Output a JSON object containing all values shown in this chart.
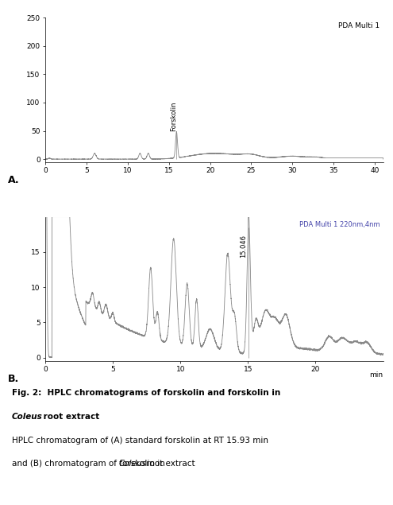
{
  "panel_a": {
    "label": "A.",
    "annotation": "PDA Multi 1",
    "peak_label": "Forskolin",
    "peak_x": 15.93,
    "peak_y": 46,
    "xlim": [
      0,
      41
    ],
    "ylim": [
      -5,
      250
    ],
    "yticks": [
      0,
      50,
      100,
      150,
      200,
      250
    ],
    "xticks": [
      0,
      5,
      10,
      15,
      20,
      25,
      30,
      35,
      40
    ]
  },
  "panel_b": {
    "label": "B.",
    "annotation": "PDA Multi 1 220nm,4nm",
    "peak_label": "15.046",
    "peak_x": 15.046,
    "peak_y": 19.0,
    "xlim": [
      0,
      25
    ],
    "ylim": [
      -0.5,
      20
    ],
    "yticks": [
      0,
      5,
      10,
      15
    ],
    "xticks": [
      0,
      5,
      10,
      15,
      20
    ],
    "xlabel": "min"
  },
  "line_color": "#888888",
  "bg_color": "#ffffff",
  "text_color": "#000000",
  "annot_color": "#4444aa"
}
